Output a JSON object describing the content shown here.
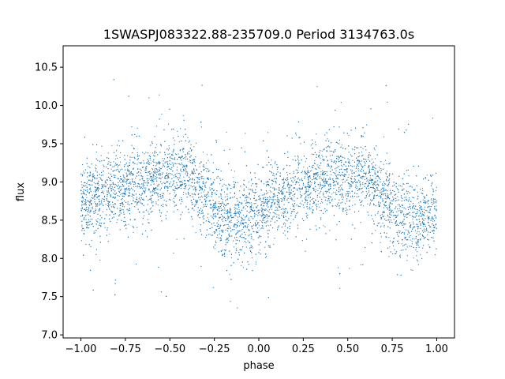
{
  "chart_data": {
    "type": "scatter",
    "title": "1SWASPJ083322.88-235709.0 Period 3134763.0s",
    "xlabel": "phase",
    "ylabel": "flux",
    "xlim": [
      -1.1,
      1.1
    ],
    "ylim": [
      6.96,
      10.78
    ],
    "xticks": [
      -1.0,
      -0.75,
      -0.5,
      -0.25,
      0.0,
      0.25,
      0.5,
      0.75,
      1.0
    ],
    "xtick_labels": [
      "−1.00",
      "−0.75",
      "−0.50",
      "−0.25",
      "0.00",
      "0.25",
      "0.50",
      "0.75",
      "1.00"
    ],
    "yticks": [
      7.0,
      7.5,
      8.0,
      8.5,
      9.0,
      9.5,
      10.0,
      10.5
    ],
    "ytick_labels": [
      "7.0",
      "7.5",
      "8.0",
      "8.5",
      "9.0",
      "9.5",
      "10.0",
      "10.5"
    ],
    "grid": false,
    "marker_color": "#1f77b4",
    "series": [
      {
        "x": [
          -1.0,
          -0.95,
          -0.9,
          -0.85,
          -0.8,
          -0.75,
          -0.7,
          -0.65,
          -0.6,
          -0.55,
          -0.5,
          -0.45,
          -0.4,
          -0.35,
          -0.3,
          -0.25,
          -0.2,
          -0.15,
          -0.1,
          -0.05,
          0.0,
          0.05,
          0.1,
          0.15,
          0.2,
          0.25,
          0.3,
          0.35,
          0.4,
          0.45,
          0.5,
          0.55,
          0.6,
          0.65,
          0.7,
          0.75,
          0.8,
          0.85,
          0.9,
          0.95,
          1.0
        ],
        "y": [
          8.7,
          8.75,
          8.8,
          8.85,
          8.9,
          8.95,
          9.0,
          9.0,
          9.05,
          9.05,
          9.05,
          9.1,
          9.1,
          8.95,
          8.8,
          8.65,
          8.55,
          8.5,
          8.5,
          8.55,
          8.6,
          8.7,
          8.75,
          8.8,
          8.9,
          8.95,
          9.0,
          9.0,
          9.05,
          9.05,
          9.05,
          9.1,
          9.1,
          8.95,
          8.8,
          8.65,
          8.55,
          8.5,
          8.5,
          8.55,
          8.6
        ]
      }
    ]
  }
}
